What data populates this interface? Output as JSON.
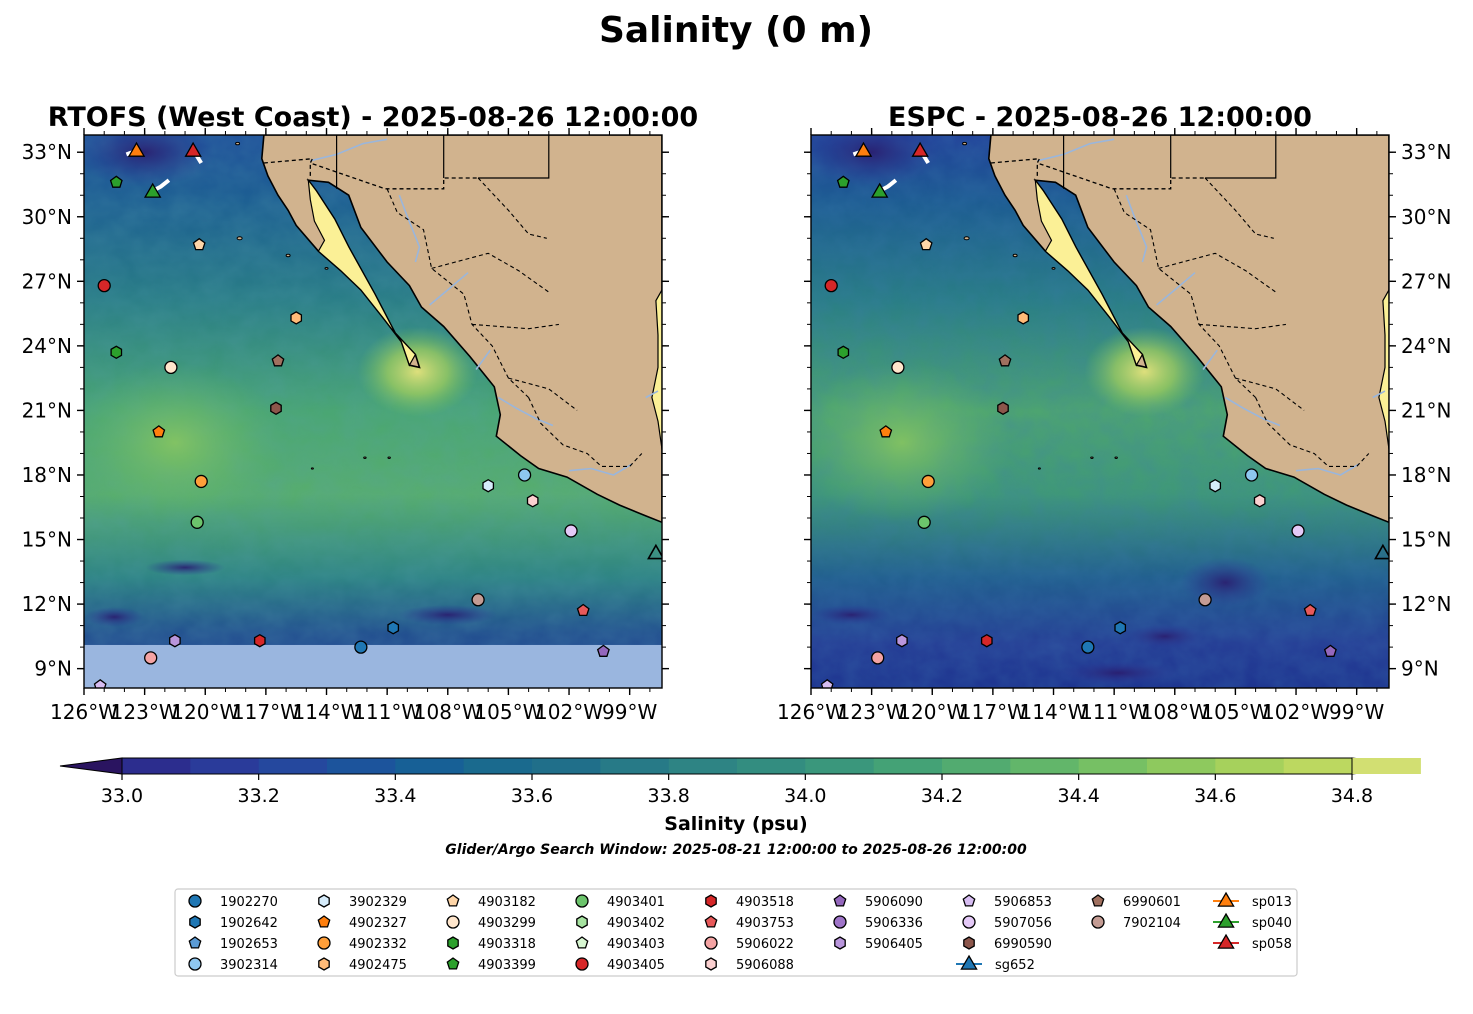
{
  "figure": {
    "title": "Salinity (0 m)",
    "search_window": "Glider/Argo Search Window: 2025-08-21 12:00:00 to 2025-08-26 12:00:00"
  },
  "panels": [
    {
      "title": "RTOFS (West Coast) - 2025-08-26 12:00:00",
      "lat_ticks_side": "left",
      "has_bottom_mask": true
    },
    {
      "title": "ESPC - 2025-08-26 12:00:00",
      "lat_ticks_side": "right",
      "has_bottom_mask": false
    }
  ],
  "axes": {
    "lon_range": [
      -126,
      -97.4
    ],
    "lat_range": [
      8.1,
      33.8
    ],
    "lon_ticks": [
      -126,
      -123,
      -120,
      -117,
      -114,
      -111,
      -108,
      -105,
      -102,
      -99
    ],
    "lon_tick_labels": [
      "126°W",
      "123°W",
      "120°W",
      "117°W",
      "114°W",
      "111°W",
      "108°W",
      "105°W",
      "102°W",
      "99°W"
    ],
    "lat_ticks": [
      33,
      30,
      27,
      24,
      21,
      18,
      15,
      12,
      9
    ],
    "lat_tick_labels": [
      "33°N",
      "30°N",
      "27°N",
      "24°N",
      "21°N",
      "18°N",
      "15°N",
      "12°N",
      "9°N"
    ]
  },
  "colorbar": {
    "label": "Salinity (psu)",
    "range": [
      32.9,
      34.9
    ],
    "levels": [
      32.9,
      33.0,
      33.1,
      33.2,
      33.3,
      33.4,
      33.5,
      33.6,
      33.7,
      33.8,
      33.9,
      34.0,
      34.1,
      34.2,
      34.3,
      34.4,
      34.5,
      34.6,
      34.7,
      34.8,
      34.9
    ],
    "ticks": [
      33.0,
      33.2,
      33.4,
      33.6,
      33.8,
      34.0,
      34.2,
      34.4,
      34.6,
      34.8
    ],
    "tick_labels": [
      "33.0",
      "33.2",
      "33.4",
      "33.6",
      "33.8",
      "34.0",
      "34.2",
      "34.4",
      "34.6",
      "34.8"
    ],
    "colors": [
      "#2a1d6e",
      "#2c2d8e",
      "#2a3b9a",
      "#25489e",
      "#1c549c",
      "#176096",
      "#1a6a8e",
      "#206f8a",
      "#277a87",
      "#2e8484",
      "#338d80",
      "#3a977c",
      "#44a276",
      "#52ab70",
      "#62b66a",
      "#76c064",
      "#8ec95e",
      "#a6d15c",
      "#bcd860",
      "#d2df72"
    ],
    "under_color": "#2a1460",
    "over_color": "#fdf39a"
  },
  "legend": {
    "columns": [
      [
        {
          "label": "1902270",
          "marker": "circle",
          "color": "#1f77b4"
        },
        {
          "label": "1902642",
          "marker": "hexagon",
          "color": "#1f77b4"
        },
        {
          "label": "1902653",
          "marker": "pentagon",
          "color": "#5b9bd5"
        },
        {
          "label": "3902314",
          "marker": "circle",
          "color": "#8ec7f0"
        }
      ],
      [
        {
          "label": "3902329",
          "marker": "hexagon",
          "color": "#d6ecfb"
        },
        {
          "label": "4902327",
          "marker": "pentagon",
          "color": "#ff7f0e"
        },
        {
          "label": "4902332",
          "marker": "circle",
          "color": "#ff9f3a"
        },
        {
          "label": "4902475",
          "marker": "hexagon",
          "color": "#ffbb78"
        }
      ],
      [
        {
          "label": "4903182",
          "marker": "pentagon",
          "color": "#ffd6a8"
        },
        {
          "label": "4903299",
          "marker": "circle",
          "color": "#ffe6cc"
        },
        {
          "label": "4903318",
          "marker": "hexagon",
          "color": "#2ca02c"
        },
        {
          "label": "4903399",
          "marker": "pentagon",
          "color": "#2ca02c"
        }
      ],
      [
        {
          "label": "4903401",
          "marker": "circle",
          "color": "#6cc46c"
        },
        {
          "label": "4903402",
          "marker": "hexagon",
          "color": "#a6e3a0"
        },
        {
          "label": "4903403",
          "marker": "pentagon",
          "color": "#d8f7d2"
        },
        {
          "label": "4903405",
          "marker": "circle",
          "color": "#d62728"
        }
      ],
      [
        {
          "label": "4903518",
          "marker": "hexagon",
          "color": "#d62728"
        },
        {
          "label": "4903753",
          "marker": "pentagon",
          "color": "#e8595a"
        },
        {
          "label": "5906022",
          "marker": "circle",
          "color": "#f4a3a3"
        },
        {
          "label": "5906088",
          "marker": "hexagon",
          "color": "#fbd0d0"
        }
      ],
      [
        {
          "label": "5906090",
          "marker": "pentagon",
          "color": "#9467bd"
        },
        {
          "label": "5906336",
          "marker": "circle",
          "color": "#9f74c8"
        },
        {
          "label": "5906405",
          "marker": "hexagon",
          "color": "#b996dc"
        }
      ],
      [
        {
          "label": "5906853",
          "marker": "pentagon",
          "color": "#d7bdf2"
        },
        {
          "label": "5907056",
          "marker": "circle",
          "color": "#e4c9f7"
        },
        {
          "label": "6990590",
          "marker": "hexagon",
          "color": "#8c564b"
        },
        {
          "label": "sg652",
          "marker": "line-triangle",
          "color": "#1f77b4"
        }
      ],
      [
        {
          "label": "6990601",
          "marker": "pentagon",
          "color": "#a0705f"
        },
        {
          "label": "7902104",
          "marker": "circle",
          "color": "#c49c94"
        }
      ],
      [
        {
          "label": "sp013",
          "marker": "line-triangle",
          "color": "#ff7f0e"
        },
        {
          "label": "sp040",
          "marker": "line-triangle",
          "color": "#2ca02c"
        },
        {
          "label": "sp058",
          "marker": "line-triangle",
          "color": "#d62728"
        }
      ]
    ]
  },
  "map_markers": [
    {
      "id": "5906853",
      "marker": "pentagon",
      "color": "#d7bdf2",
      "lon": -125.2,
      "lat": 8.2
    },
    {
      "id": "4903405",
      "marker": "circle",
      "color": "#d62728",
      "lon": -125.0,
      "lat": 26.8
    },
    {
      "id": "4903399",
      "marker": "pentagon",
      "color": "#2ca02c",
      "lon": -124.4,
      "lat": 31.6
    },
    {
      "id": "4903318",
      "marker": "hexagon",
      "color": "#2ca02c",
      "lon": -124.4,
      "lat": 23.7
    },
    {
      "id": "5906022",
      "marker": "circle",
      "color": "#f4a3a3",
      "lon": -122.7,
      "lat": 9.5
    },
    {
      "id": "4903299",
      "marker": "circle",
      "color": "#ffe6cc",
      "lon": -121.7,
      "lat": 23.0
    },
    {
      "id": "5906405",
      "marker": "hexagon",
      "color": "#b996dc",
      "lon": -121.5,
      "lat": 10.3
    },
    {
      "id": "4902327",
      "marker": "pentagon",
      "color": "#ff7f0e",
      "lon": -122.3,
      "lat": 20.0
    },
    {
      "id": "4903182",
      "marker": "pentagon",
      "color": "#ffd6a8",
      "lon": -120.3,
      "lat": 28.7
    },
    {
      "id": "4902332",
      "marker": "circle",
      "color": "#ff9f3a",
      "lon": -120.2,
      "lat": 17.7
    },
    {
      "id": "4903401",
      "marker": "circle",
      "color": "#6cc46c",
      "lon": -120.4,
      "lat": 15.8
    },
    {
      "id": "4903518",
      "marker": "hexagon",
      "color": "#d62728",
      "lon": -117.3,
      "lat": 10.3
    },
    {
      "id": "6990601",
      "marker": "pentagon",
      "color": "#a0705f",
      "lon": -116.4,
      "lat": 23.3
    },
    {
      "id": "6990590",
      "marker": "hexagon",
      "color": "#8c564b",
      "lon": -116.5,
      "lat": 21.1
    },
    {
      "id": "4902475",
      "marker": "hexagon",
      "color": "#ffbb78",
      "lon": -115.5,
      "lat": 25.3
    },
    {
      "id": "1902270",
      "marker": "circle",
      "color": "#1f77b4",
      "lon": -112.3,
      "lat": 10.0
    },
    {
      "id": "1902642",
      "marker": "hexagon",
      "color": "#1f77b4",
      "lon": -110.7,
      "lat": 10.9
    },
    {
      "id": "7902104",
      "marker": "circle",
      "color": "#c49c94",
      "lon": -106.5,
      "lat": 12.2
    },
    {
      "id": "3902329",
      "marker": "hexagon",
      "color": "#d6ecfb",
      "lon": -106.0,
      "lat": 17.5
    },
    {
      "id": "3902314",
      "marker": "circle",
      "color": "#8ec7f0",
      "lon": -104.2,
      "lat": 18.0
    },
    {
      "id": "5906088",
      "marker": "hexagon",
      "color": "#fbd0d0",
      "lon": -103.8,
      "lat": 16.8
    },
    {
      "id": "5907056",
      "marker": "circle",
      "color": "#e4c9f7",
      "lon": -101.9,
      "lat": 15.4
    },
    {
      "id": "4903753",
      "marker": "pentagon",
      "color": "#e8595a",
      "lon": -101.3,
      "lat": 11.7
    },
    {
      "id": "5906090",
      "marker": "pentagon",
      "color": "#9467bd",
      "lon": -100.3,
      "lat": 9.8
    }
  ],
  "gliders": [
    {
      "id": "sp013",
      "color": "#ff7f0e",
      "lon": -123.4,
      "lat": 33.1,
      "track": [
        [
          -123.9,
          32.9
        ],
        [
          -123.6,
          33.0
        ],
        [
          -123.4,
          33.1
        ]
      ]
    },
    {
      "id": "sp058",
      "color": "#d62728",
      "lon": -120.6,
      "lat": 33.1,
      "track": [
        [
          -120.2,
          32.5
        ],
        [
          -120.4,
          32.8
        ],
        [
          -120.6,
          33.1
        ]
      ]
    },
    {
      "id": "sp040",
      "color": "#2ca02c",
      "lon": -122.6,
      "lat": 31.2,
      "track": [
        [
          -121.8,
          31.7
        ],
        [
          -122.2,
          31.4
        ],
        [
          -122.6,
          31.2
        ]
      ]
    },
    {
      "id": "sg652",
      "color": "#1f77b4",
      "lon": -97.7,
      "lat": 14.4,
      "track": [
        [
          -97.7,
          14.4
        ]
      ]
    }
  ]
}
